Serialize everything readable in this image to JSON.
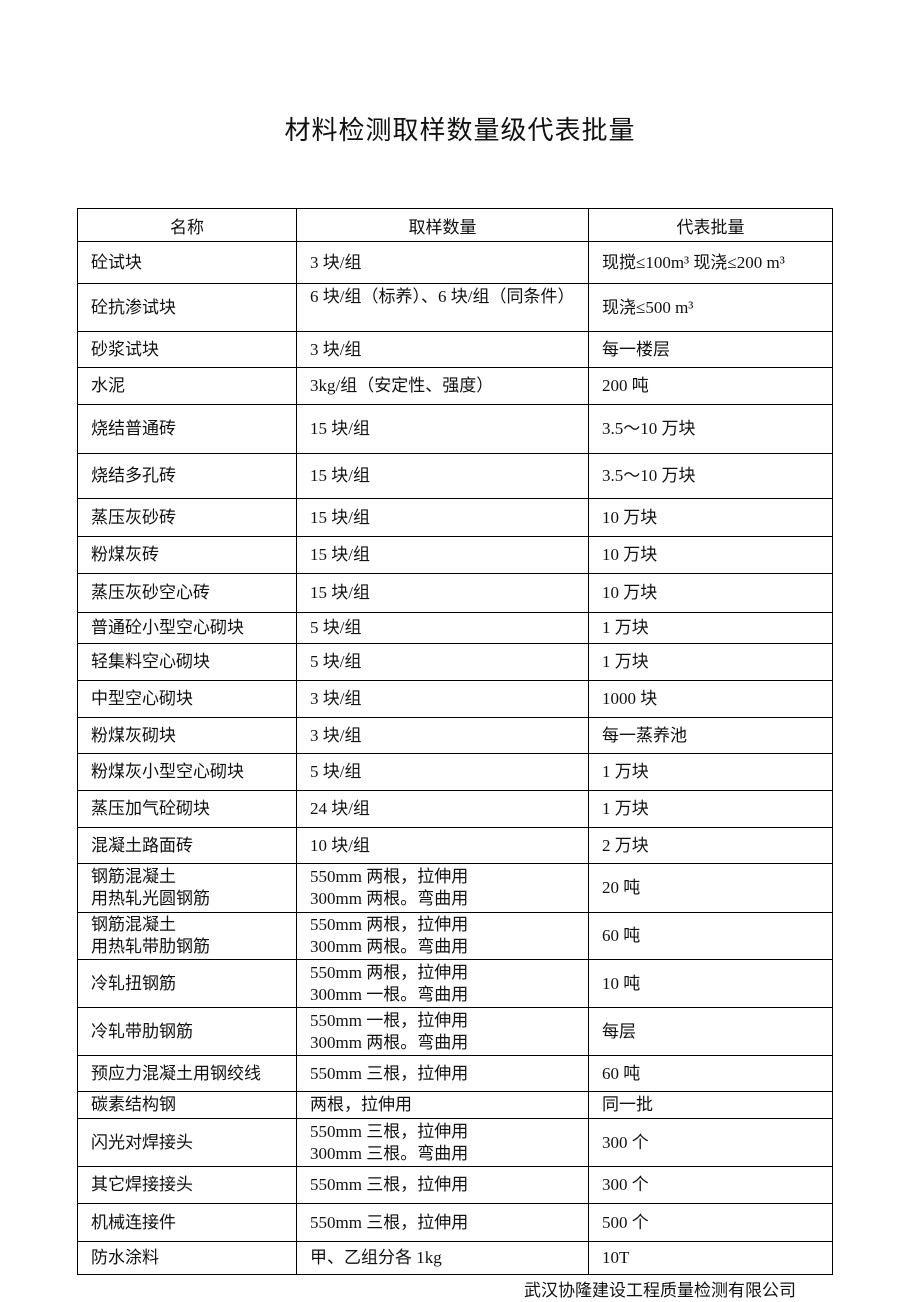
{
  "page": {
    "title": "材料检测取样数量级代表批量",
    "footer": "武汉协隆建设工程质量检测有限公司"
  },
  "table": {
    "headers": [
      "名称",
      "取样数量",
      "代表批量"
    ],
    "rows": [
      {
        "name": [
          "砼试块"
        ],
        "qty": [
          "3 块/组"
        ],
        "batch": [
          "现搅≤100m³ 现浇≤200 m³"
        ]
      },
      {
        "name": [
          "砼抗渗试块"
        ],
        "qty": [
          "6 块/组（标养）、6 块/组（同条件）"
        ],
        "batch": [
          "现浇≤500 m³"
        ]
      },
      {
        "name": [
          "砂浆试块"
        ],
        "qty": [
          "3 块/组"
        ],
        "batch": [
          "每一楼层"
        ]
      },
      {
        "name": [
          "水泥"
        ],
        "qty": [
          "3kg/组（安定性、强度）"
        ],
        "batch": [
          "200 吨"
        ]
      },
      {
        "name": [
          "烧结普通砖"
        ],
        "qty": [
          "15 块/组"
        ],
        "batch": [
          "3.5～10 万块"
        ]
      },
      {
        "name": [
          "烧结多孔砖"
        ],
        "qty": [
          "15 块/组"
        ],
        "batch": [
          "3.5～10 万块"
        ]
      },
      {
        "name": [
          "蒸压灰砂砖"
        ],
        "qty": [
          "15 块/组"
        ],
        "batch": [
          "10 万块"
        ]
      },
      {
        "name": [
          "粉煤灰砖"
        ],
        "qty": [
          "15 块/组"
        ],
        "batch": [
          "10 万块"
        ]
      },
      {
        "name": [
          "蒸压灰砂空心砖"
        ],
        "qty": [
          "15 块/组"
        ],
        "batch": [
          "10 万块"
        ]
      },
      {
        "name": [
          "普通砼小型空心砌块"
        ],
        "qty": [
          "5 块/组"
        ],
        "batch": [
          "1 万块"
        ]
      },
      {
        "name": [
          "轻集料空心砌块"
        ],
        "qty": [
          "5 块/组"
        ],
        "batch": [
          "1 万块"
        ]
      },
      {
        "name": [
          "中型空心砌块"
        ],
        "qty": [
          "3 块/组"
        ],
        "batch": [
          "1000 块"
        ]
      },
      {
        "name": [
          "粉煤灰砌块"
        ],
        "qty": [
          "3 块/组"
        ],
        "batch": [
          "每一蒸养池"
        ]
      },
      {
        "name": [
          "粉煤灰小型空心砌块"
        ],
        "qty": [
          "5 块/组"
        ],
        "batch": [
          "1 万块"
        ]
      },
      {
        "name": [
          "蒸压加气砼砌块"
        ],
        "qty": [
          "24 块/组"
        ],
        "batch": [
          "1 万块"
        ]
      },
      {
        "name": [
          "混凝土路面砖"
        ],
        "qty": [
          "10 块/组"
        ],
        "batch": [
          "2 万块"
        ]
      },
      {
        "name": [
          "钢筋混凝土",
          "用热轧光圆钢筋"
        ],
        "qty": [
          "550mm 两根，拉伸用",
          "300mm 两根。弯曲用"
        ],
        "batch": [
          "20 吨"
        ]
      },
      {
        "name": [
          "钢筋混凝土",
          "用热轧带肋钢筋"
        ],
        "qty": [
          "550mm 两根，拉伸用",
          "300mm 两根。弯曲用"
        ],
        "batch": [
          "60 吨"
        ]
      },
      {
        "name": [
          "冷轧扭钢筋"
        ],
        "qty": [
          "550mm 两根，拉伸用",
          "300mm 一根。弯曲用"
        ],
        "batch": [
          "10 吨"
        ]
      },
      {
        "name": [
          "冷轧带肋钢筋"
        ],
        "qty": [
          "550mm 一根，拉伸用",
          "300mm 两根。弯曲用"
        ],
        "batch": [
          "每层"
        ]
      },
      {
        "name": [
          "预应力混凝土用钢绞线"
        ],
        "qty": [
          "550mm 三根，拉伸用"
        ],
        "batch": [
          "60 吨"
        ]
      },
      {
        "name": [
          "碳素结构钢"
        ],
        "qty": [
          "两根，拉伸用"
        ],
        "batch": [
          "同一批"
        ]
      },
      {
        "name": [
          "闪光对焊接头"
        ],
        "qty": [
          "550mm 三根，拉伸用",
          "300mm 三根。弯曲用"
        ],
        "batch": [
          "300 个"
        ]
      },
      {
        "name": [
          "其它焊接接头"
        ],
        "qty": [
          "550mm 三根，拉伸用"
        ],
        "batch": [
          "300 个"
        ]
      },
      {
        "name": [
          "机械连接件"
        ],
        "qty": [
          "550mm 三根，拉伸用"
        ],
        "batch": [
          "500 个"
        ]
      },
      {
        "name": [
          "防水涂料"
        ],
        "qty": [
          "甲、乙组分各 1kg"
        ],
        "batch": [
          "10T"
        ]
      }
    ]
  }
}
